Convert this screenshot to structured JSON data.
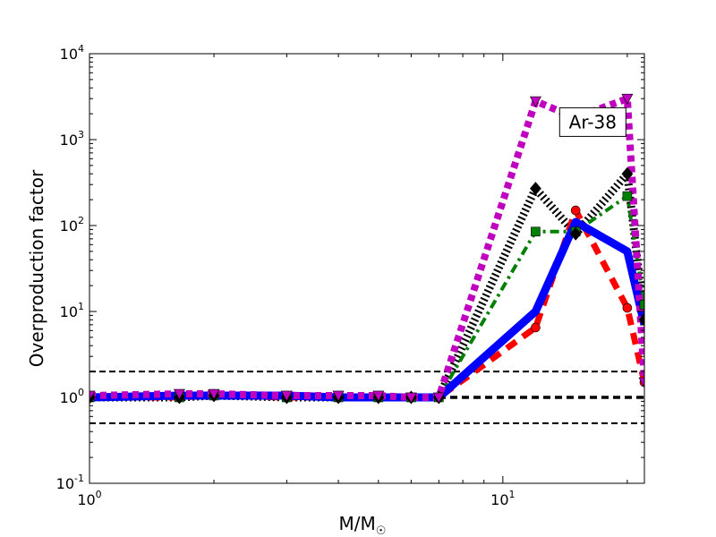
{
  "chart_data": {
    "type": "line",
    "xlabel": "M/M",
    "xlabel_subscript": "☉",
    "ylabel": "Overproduction factor",
    "xscale": "log",
    "yscale": "log",
    "xlim": [
      1,
      22
    ],
    "ylim": [
      0.1,
      10000
    ],
    "grid": false,
    "x_ticks": [
      {
        "value": 1,
        "base": "10",
        "exp": "0"
      },
      {
        "value": 10,
        "base": "10",
        "exp": "1"
      }
    ],
    "y_ticks": [
      {
        "value": 0.1,
        "base": "10",
        "exp": "-1"
      },
      {
        "value": 1,
        "base": "10",
        "exp": "0"
      },
      {
        "value": 10,
        "base": "10",
        "exp": "1"
      },
      {
        "value": 100,
        "base": "10",
        "exp": "2"
      },
      {
        "value": 1000,
        "base": "10",
        "exp": "3"
      },
      {
        "value": 10000,
        "base": "10",
        "exp": "4"
      }
    ],
    "reference_lines": [
      {
        "y": 2.0,
        "color": "#000000",
        "style": "dashed-thin"
      },
      {
        "y": 1.0,
        "color": "#000000",
        "style": "dashed-thick"
      },
      {
        "y": 0.5,
        "color": "#000000",
        "style": "dashed-thin"
      }
    ],
    "annotation": {
      "text": "Ar-38",
      "x": 16.5,
      "y": 1600
    },
    "series": [
      {
        "color": "#0000ff",
        "style": "solid",
        "marker": "none",
        "x": [
          1,
          1.65,
          2,
          3,
          4,
          5,
          6,
          7,
          12,
          15,
          20,
          22
        ],
        "y": [
          1.0,
          1.05,
          1.05,
          1.05,
          1.0,
          1.0,
          1.0,
          1.0,
          10,
          110,
          50,
          7
        ]
      },
      {
        "color": "#ff0000",
        "style": "dashed",
        "marker": "circle",
        "x": [
          1,
          1.65,
          2,
          3,
          4,
          5,
          6,
          7,
          12,
          15,
          20,
          22
        ],
        "y": [
          1.0,
          1.0,
          1.05,
          1.0,
          1.0,
          1.0,
          1.0,
          1.0,
          6.5,
          150,
          11,
          1.5
        ]
      },
      {
        "color": "#008000",
        "style": "dashdot",
        "marker": "square",
        "x": [
          1,
          1.65,
          2,
          3,
          4,
          5,
          6,
          7,
          12,
          15,
          20,
          22
        ],
        "y": [
          1.0,
          1.0,
          1.05,
          1.0,
          1.0,
          1.0,
          1.0,
          1.0,
          85,
          85,
          220,
          12
        ]
      },
      {
        "color": "#000000",
        "style": "dotted",
        "marker": "diamond",
        "x": [
          1,
          1.65,
          2,
          3,
          4,
          5,
          6,
          7,
          12,
          15,
          20,
          22
        ],
        "y": [
          1.0,
          1.0,
          1.05,
          1.0,
          1.0,
          1.0,
          1.0,
          1.0,
          270,
          80,
          400,
          8
        ]
      },
      {
        "color": "#bf00bf",
        "style": "dotted-thick",
        "marker": "triangle-down",
        "x": [
          1,
          1.65,
          2,
          3,
          4,
          5,
          6,
          7,
          12,
          15,
          20,
          22
        ],
        "y": [
          1.05,
          1.1,
          1.1,
          1.05,
          1.05,
          1.05,
          1.0,
          1.0,
          2800,
          1800,
          3000,
          1.5
        ]
      }
    ]
  }
}
